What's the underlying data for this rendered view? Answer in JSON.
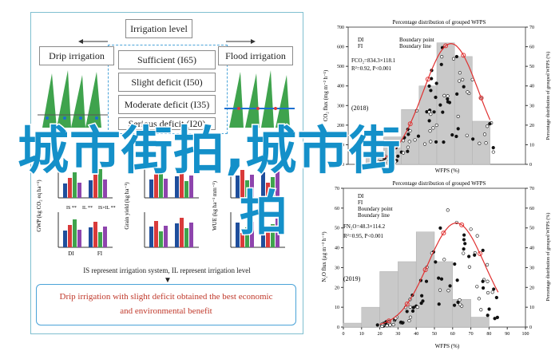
{
  "left_panel": {
    "title": "Irrigation level",
    "drip_label": "Drip irrigation",
    "flood_label": "Flood irrigation",
    "levels": [
      "Sufficient (I65)",
      "Slight deficit (I50)",
      "Moderate deficit (I35)",
      "Serious deficit (I20)"
    ],
    "footer": "IS represent irrigation system, IL represent irrigation level",
    "conclusion_line1": "Drip irrigation with slight deficit obtained the best economic",
    "conclusion_line2": "and environmental benefit",
    "small_chart_ylabels": [
      "GWP (kg CO₂ eq ha⁻¹)",
      "Grain yield (kg ha⁻¹)",
      "WUE (kg ha⁻¹ mm⁻¹)"
    ],
    "small_chart_groups": [
      "DI",
      "FI"
    ],
    "sig_labels": [
      "IS **",
      "IL **",
      "IS×IL **"
    ]
  },
  "top_chart": {
    "title": "Percentage distribution of grouped WFPS",
    "legend": [
      "DI",
      "FI",
      "Boundary point",
      "Boundary line"
    ],
    "eq1": "FCO₂=834.3×118.1",
    "eq2": "R²=0.92, P<0.001",
    "year": "(2018)",
    "ylabel_left": "CO₂ flux (mg m⁻² h⁻¹)",
    "ylabel_right": "Percentage distribution of grouped WFPS (%)",
    "yticks_left": [
      "0",
      "100",
      "200",
      "300",
      "400",
      "500",
      "600",
      "700"
    ],
    "yticks_right": [
      "0",
      "10",
      "20",
      "30",
      "40",
      "50",
      "60",
      "70"
    ],
    "xlabel": "WFPS (%)"
  },
  "bottom_chart": {
    "title": "Percentage distribution of grouped WFPS",
    "legend": [
      "DI",
      "FI",
      "Boundary point",
      "Boundary line"
    ],
    "eq1": "FN₂O=48.3×114.2",
    "eq2": "R²=0.95, P<0.001",
    "year": "(2019)",
    "ylabel_left": "N₂O flux (μg m⁻² h⁻¹)",
    "ylabel_right": "Percentage distribution of grouped WFPS (%)",
    "yticks_left": [
      "0",
      "10",
      "20",
      "30",
      "40",
      "50",
      "60",
      "70"
    ],
    "yticks_right": [
      "0",
      "10",
      "20",
      "30",
      "40",
      "50",
      "60",
      "70"
    ],
    "xticks": [
      "0",
      "10",
      "20",
      "30",
      "40",
      "50",
      "60",
      "70",
      "80",
      "90",
      "100"
    ],
    "xlabel": "WFPS (%)"
  },
  "overlay_text_1": "城市街拍,城市街",
  "overlay_text_2": "拍",
  "chart_data": [
    {
      "type": "bar",
      "categories": [
        "10-20",
        "20-30",
        "30-40",
        "40-50",
        "50-60",
        "60-70",
        "70-80"
      ],
      "values": [
        3,
        14,
        28,
        40,
        62,
        55,
        22
      ],
      "title": "Percentage distribution of grouped WFPS",
      "xlabel": "WFPS (%)",
      "ylabel": "CO₂ flux (mg m⁻² h⁻¹)",
      "ylim": [
        0,
        70
      ]
    },
    {
      "type": "bar",
      "categories": [
        "0-10",
        "10-20",
        "20-30",
        "30-40",
        "40-50",
        "50-60",
        "60-70",
        "70-80"
      ],
      "values": [
        2,
        10,
        28,
        33,
        48,
        33,
        14,
        5
      ],
      "title": "Percentage distribution of grouped WFPS",
      "xlabel": "WFPS (%)",
      "ylabel": "N₂O flux (μg m⁻² h⁻¹)",
      "ylim": [
        0,
        70
      ]
    }
  ]
}
